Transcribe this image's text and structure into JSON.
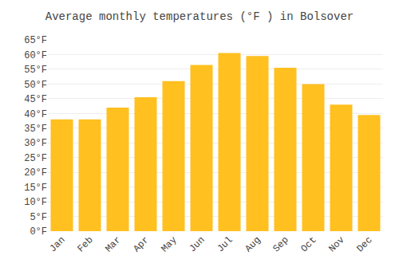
{
  "chart_data": {
    "type": "bar",
    "title": "Average monthly temperatures (°F ) in Bolsover",
    "categories": [
      "Jan",
      "Feb",
      "Mar",
      "Apr",
      "May",
      "Jun",
      "Jul",
      "Aug",
      "Sep",
      "Oct",
      "Nov",
      "Dec"
    ],
    "values": [
      38,
      38,
      42,
      45.5,
      51,
      56.5,
      60.5,
      59.5,
      55.5,
      50,
      43,
      39.5
    ],
    "color": "#FFC020",
    "ylim": [
      0,
      65
    ],
    "yticks": [
      {
        "value": 0,
        "label": "0°F"
      },
      {
        "value": 5,
        "label": "5°F"
      },
      {
        "value": 10,
        "label": "10°F"
      },
      {
        "value": 15,
        "label": "15°F"
      },
      {
        "value": 20,
        "label": "20°F"
      },
      {
        "value": 25,
        "label": "25°F"
      },
      {
        "value": 30,
        "label": "30°F"
      },
      {
        "value": 35,
        "label": "35°F"
      },
      {
        "value": 40,
        "label": "40°F"
      },
      {
        "value": 45,
        "label": "45°F"
      },
      {
        "value": 50,
        "label": "50°F"
      },
      {
        "value": 55,
        "label": "55°F"
      },
      {
        "value": 60,
        "label": "60°F"
      },
      {
        "value": 65,
        "label": "65°F"
      }
    ],
    "grid": true
  }
}
